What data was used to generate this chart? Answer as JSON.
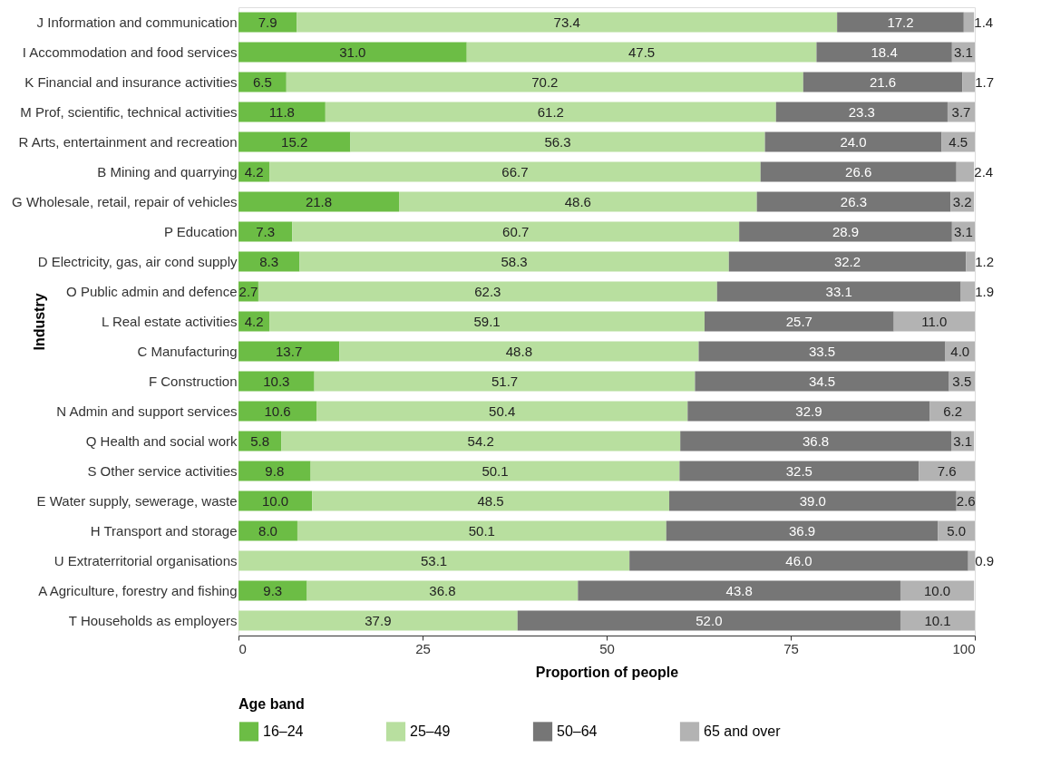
{
  "chart_data": {
    "type": "bar",
    "orientation": "horizontal",
    "stacked": true,
    "xlabel": "Proportion of people",
    "ylabel": "Industry",
    "legend_title": "Age band",
    "categories": [
      "J  Information and communication",
      "I  Accommodation and food services",
      "K  Financial and insurance activities",
      "M  Prof, scientific, technical activities",
      "R  Arts, entertainment and recreation",
      "B  Mining and quarrying",
      "G  Wholesale, retail, repair of vehicles",
      "P  Education",
      "D  Electricity, gas, air cond supply",
      "O  Public admin and defence",
      "L  Real estate activities",
      "C  Manufacturing",
      "F  Construction",
      "N  Admin and support services",
      "Q  Health and social work",
      "S  Other service activities",
      "E  Water supply, sewerage, waste",
      "H  Transport and storage",
      "U  Extraterritorial organisations",
      "A  Agriculture, forestry and fishing",
      "T  Households as employers"
    ],
    "series": [
      {
        "name": "16–24",
        "color": "#6cbd45",
        "values": [
          7.9,
          31.0,
          6.5,
          11.8,
          15.2,
          4.2,
          21.8,
          7.3,
          8.3,
          2.7,
          4.2,
          13.7,
          10.3,
          10.6,
          5.8,
          9.8,
          10.0,
          8.0,
          null,
          9.3,
          null
        ],
        "value_labels": [
          "7.9",
          "31.0",
          "6.5",
          "11.8",
          "15.2",
          "4.2",
          "21.8",
          "7.3",
          "8.3",
          "2.7",
          "4.2",
          "13.7",
          "10.3",
          "10.6",
          "5.8",
          "9.8",
          "10.0",
          "8.0",
          null,
          "9.3",
          null
        ]
      },
      {
        "name": "25–49",
        "color": "#b8df9f",
        "values": [
          73.4,
          47.5,
          70.2,
          61.2,
          56.3,
          66.7,
          48.6,
          60.7,
          58.3,
          62.3,
          59.1,
          48.8,
          51.7,
          50.4,
          54.2,
          50.1,
          48.5,
          50.1,
          53.1,
          36.8,
          37.9
        ],
        "value_labels": [
          "73.4",
          "47.5",
          "70.2",
          "61.2",
          "56.3",
          "66.7",
          "48.6",
          "60.7",
          "58.3",
          "62.3",
          "59.1",
          "48.8",
          "51.7",
          "50.4",
          "54.2",
          "50.1",
          "48.5",
          "50.1",
          "53.1",
          "36.8",
          "37.9"
        ]
      },
      {
        "name": "50–64",
        "color": "#767676",
        "values": [
          17.2,
          18.4,
          21.6,
          23.3,
          24.0,
          26.6,
          26.3,
          28.9,
          32.2,
          33.1,
          25.7,
          33.5,
          34.5,
          32.9,
          36.8,
          32.5,
          39.0,
          36.9,
          46.0,
          43.8,
          52.0
        ],
        "value_labels": [
          "17.2",
          "18.4",
          "21.6",
          "23.3",
          "24.0",
          "26.6",
          "26.3",
          "28.9",
          "32.2",
          "33.1",
          "25.7",
          "33.5",
          "34.5",
          "32.9",
          "36.8",
          "32.5",
          "39.0",
          "36.9",
          "46.0",
          "43.8",
          "52.0"
        ]
      },
      {
        "name": "65 and over",
        "color": "#b3b3b3",
        "values": [
          1.4,
          3.1,
          1.7,
          3.7,
          4.5,
          2.4,
          3.2,
          3.1,
          1.2,
          1.9,
          11.0,
          4.0,
          3.5,
          6.2,
          3.1,
          7.6,
          2.6,
          5.0,
          0.9,
          10.0,
          10.1
        ],
        "value_labels": [
          "1.4",
          "3.1",
          "1.7",
          "3.7",
          "4.5",
          "2.4",
          "3.2",
          "3.1",
          "1.2",
          "1.9",
          "11.0",
          "4.0",
          "3.5",
          "6.2",
          "3.1",
          "7.6",
          "2.6",
          "5.0",
          "0.9",
          "10.0",
          "10.1"
        ]
      }
    ],
    "xlim": [
      0,
      100
    ],
    "xticks": [
      0,
      25,
      50,
      75,
      100
    ],
    "legend": "bottom"
  }
}
